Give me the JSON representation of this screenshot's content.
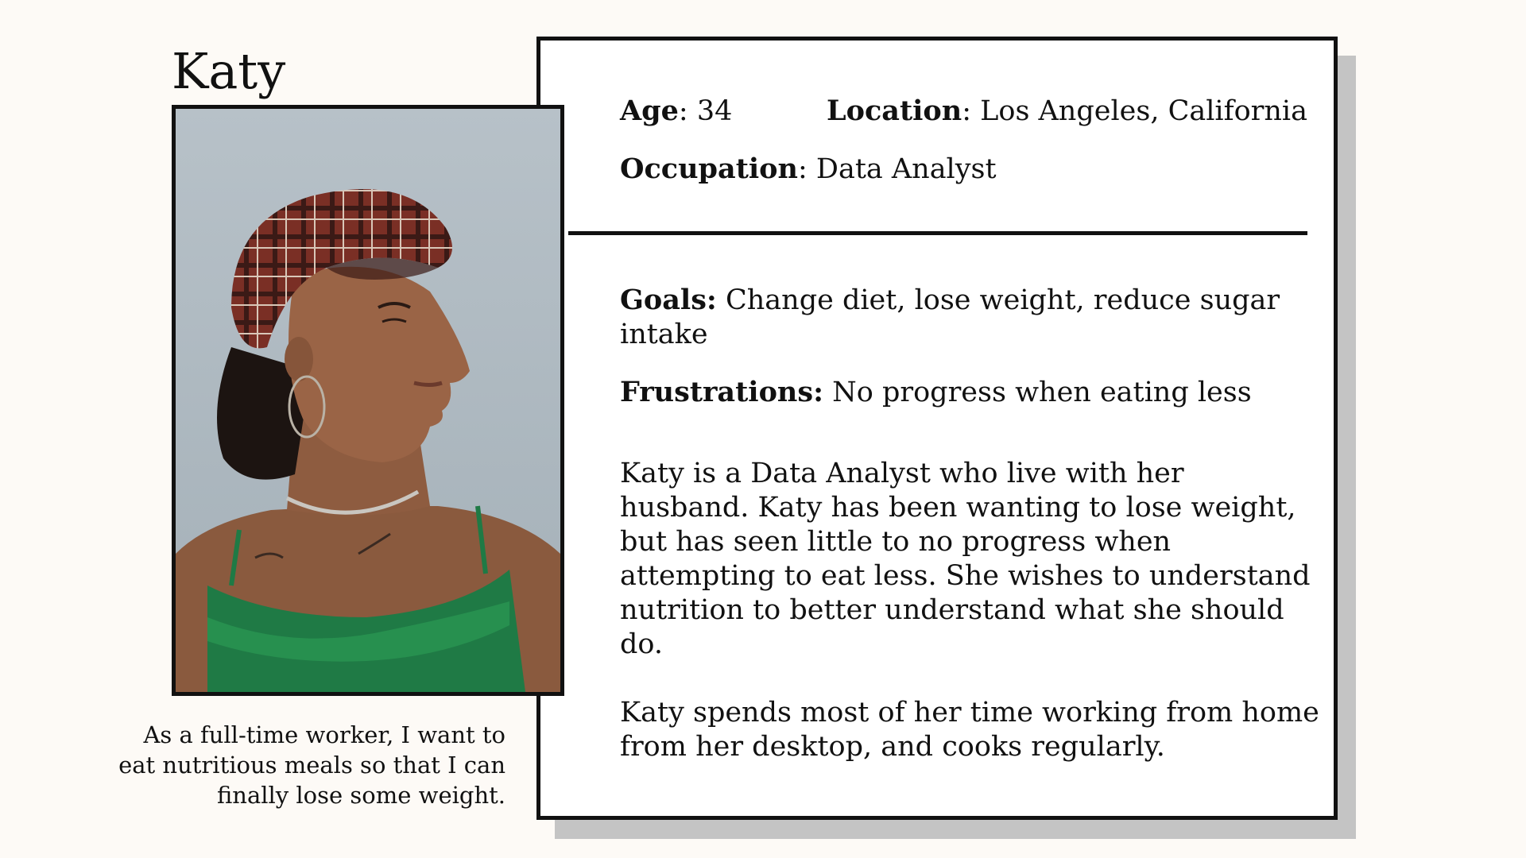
{
  "persona": {
    "name": "Katy",
    "quote": "As a full-time worker, I want to eat nutritious meals so that I can finally lose some weight."
  },
  "details": {
    "age_label": "Age",
    "age_value": "34",
    "location_label": "Location",
    "location_value": "Los Angeles, California",
    "occupation_label": "Occupation",
    "occupation_value": "Data Analyst"
  },
  "profile": {
    "goals_label": "Goals:",
    "goals_value": "Change diet, lose weight, reduce sugar intake",
    "frustrations_label": "Frustrations:",
    "frustrations_value": "No progress when eating less",
    "bio_1": "Katy is a Data Analyst who live with her husband. Katy has been wanting to lose weight, but has seen little to no progress when attempting to eat less. She wishes to understand nutrition to better understand what she should do.",
    "bio_2": "Katy spends most of her time working from home from her desktop, and cooks regularly."
  },
  "colors": {
    "background": "#fdfaf6",
    "card": "#ffffff",
    "shadow": "#c4c4c4",
    "border": "#111111"
  }
}
